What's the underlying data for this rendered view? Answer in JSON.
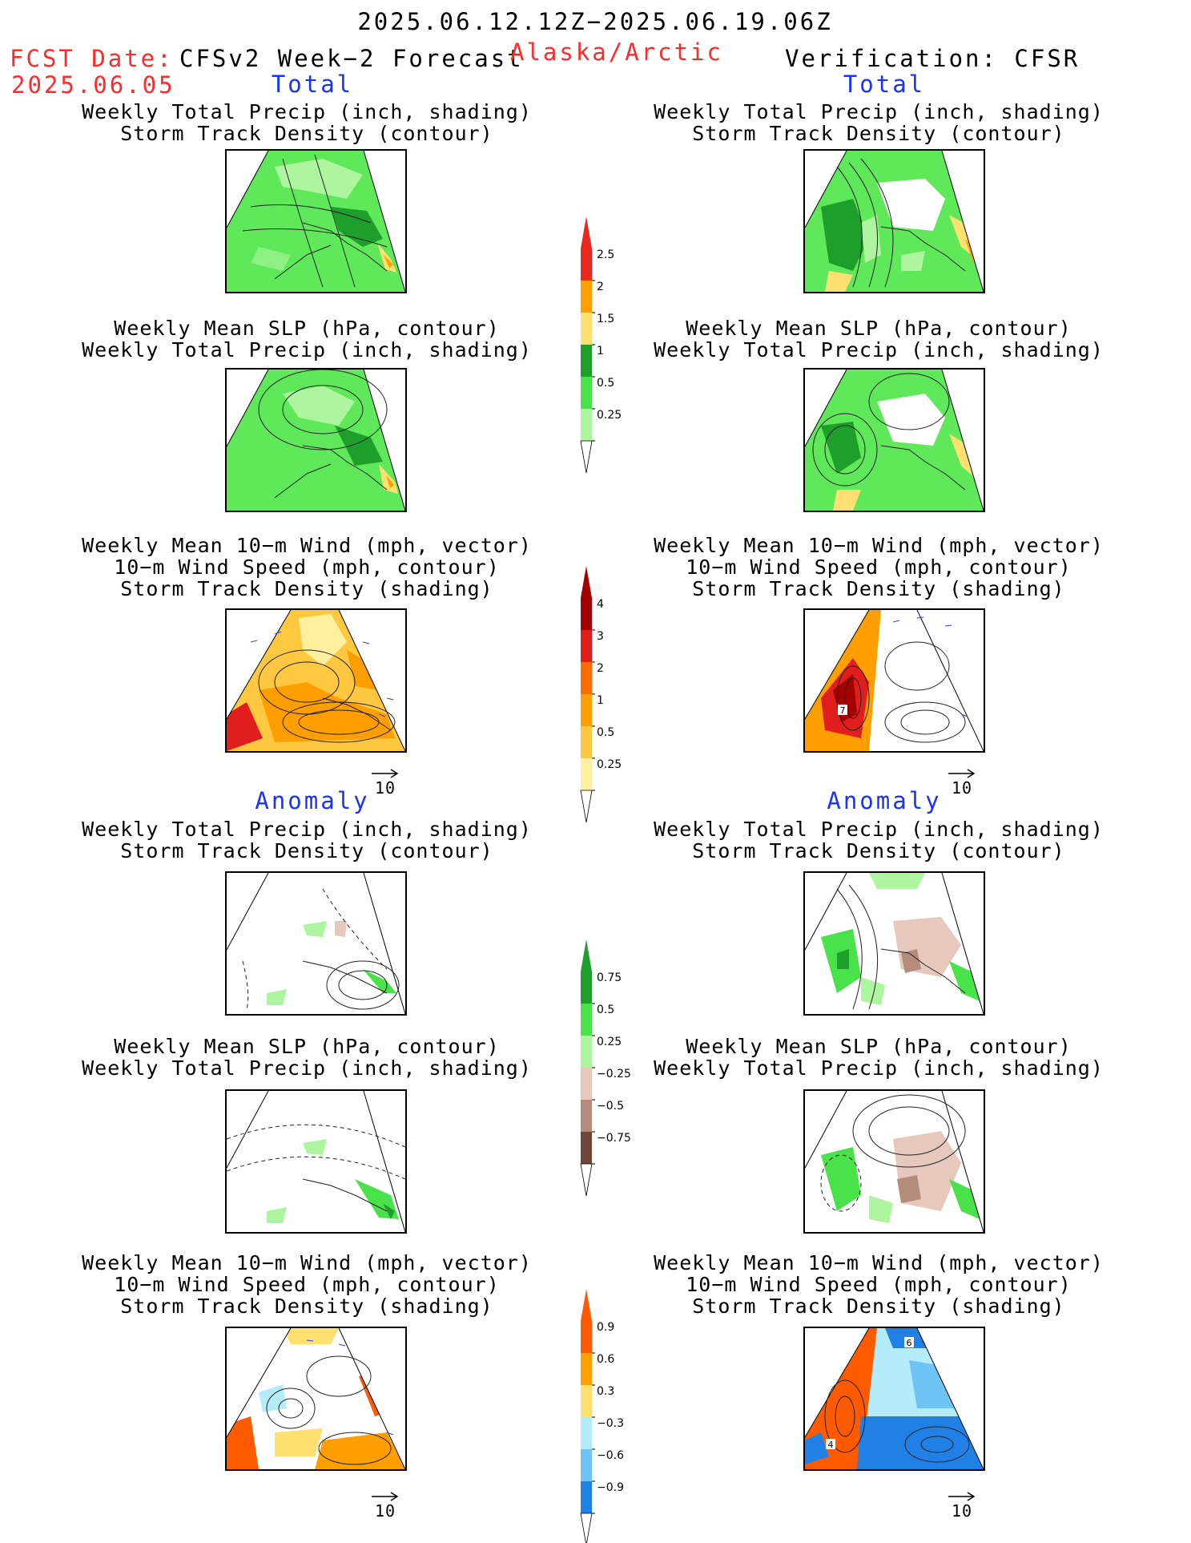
{
  "header": {
    "period": "2025.06.12.12Z−2025.06.19.06Z",
    "fcst_label": "FCST Date:",
    "fcst_date": "2025.06.05",
    "left_title": "CFSv2 Week−2 Forecast",
    "region": "Alaska/Arctic",
    "right_title": "Verification: CFSR"
  },
  "sections": {
    "total": "Total",
    "anomaly": "Anomaly"
  },
  "panel_titles": {
    "precip_track": [
      "Weekly Total Precip (inch, shading)",
      "Storm Track Density (contour)"
    ],
    "slp_precip": [
      "Weekly Mean SLP (hPa, contour)",
      "Weekly Total Precip (inch, shading)"
    ],
    "wind_track": [
      "Weekly Mean 10−m Wind (mph, vector)",
      "10−m Wind Speed (mph, contour)",
      "Storm Track Density (shading)"
    ]
  },
  "reference_vector": "10",
  "map_labels": {
    "verif_total_wind": "7",
    "verif_anom_wind_top": "6",
    "verif_anom_wind_left": "4"
  },
  "colorbars": {
    "precip_total": {
      "ticks": [
        "2.5",
        "2",
        "1.5",
        "1",
        "0.5",
        "0.25"
      ],
      "colors": [
        "#e8281e",
        "#ffa000",
        "#ffe070",
        "#1e9e2a",
        "#4ae24a",
        "#aef5a0"
      ]
    },
    "track_total": {
      "ticks": [
        "4",
        "3",
        "2",
        "1",
        "0.5",
        "0.25"
      ],
      "colors": [
        "#a50000",
        "#e01e1e",
        "#ff6a00",
        "#ff9e00",
        "#ffc840",
        "#fff0a0"
      ]
    },
    "precip_anom": {
      "ticks": [
        "0.75",
        "0.5",
        "0.25",
        "−0.25",
        "−0.5",
        "−0.75"
      ],
      "colors": [
        "#1e9e2a",
        "#4ae24a",
        "#aef5a0",
        "#e6c8bc",
        "#b48c7c",
        "#6e4636"
      ]
    },
    "track_anom": {
      "ticks": [
        "0.9",
        "0.6",
        "0.3",
        "−0.3",
        "−0.6",
        "−0.9"
      ],
      "colors": [
        "#ff5a00",
        "#ffa000",
        "#ffe070",
        "#b4ecfa",
        "#6ec4f5",
        "#2080e6"
      ]
    }
  }
}
